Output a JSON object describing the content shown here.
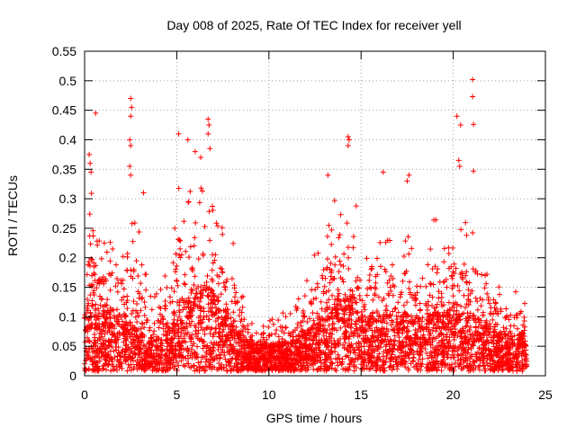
{
  "chart_data": {
    "type": "scatter",
    "title": "Day 008 of 2025, Rate Of TEC Index for receiver yell",
    "xlabel": "GPS time / hours",
    "ylabel": "ROTI / TECUs",
    "xlim": [
      0,
      25
    ],
    "ylim": [
      0,
      0.55
    ],
    "xticks": [
      0,
      5,
      10,
      15,
      20,
      25
    ],
    "xtick_labels": [
      "0",
      "5",
      "10",
      "15",
      "20",
      "25"
    ],
    "yticks": [
      0,
      0.05,
      0.1,
      0.15,
      0.2,
      0.25,
      0.3,
      0.35,
      0.4,
      0.45,
      0.5,
      0.55
    ],
    "ytick_labels": [
      "0",
      "0.05",
      "0.1",
      "0.15",
      "0.2",
      "0.25",
      "0.3",
      "0.35",
      "0.4",
      "0.45",
      "0.5",
      "0.55"
    ],
    "grid": true,
    "marker": "+",
    "color": "#ff0000",
    "data_time_range": [
      0,
      24
    ],
    "envelope": {
      "t": [
        0,
        0.3,
        0.6,
        1,
        1.5,
        2,
        2.5,
        3,
        3.5,
        4,
        4.5,
        5,
        5.5,
        6,
        6.5,
        7,
        7.5,
        8,
        8.5,
        9,
        9.5,
        10,
        10.5,
        11,
        11.5,
        12,
        12.5,
        13,
        13.5,
        14,
        14.5,
        15,
        15.5,
        16,
        16.5,
        17,
        17.5,
        18,
        18.5,
        19,
        19.5,
        20,
        20.5,
        21,
        21.5,
        22,
        22.5,
        23,
        23.5,
        24
      ],
      "max": [
        0.2,
        0.33,
        0.27,
        0.22,
        0.23,
        0.2,
        0.28,
        0.24,
        0.13,
        0.16,
        0.18,
        0.33,
        0.3,
        0.32,
        0.34,
        0.3,
        0.24,
        0.23,
        0.15,
        0.09,
        0.08,
        0.09,
        0.11,
        0.1,
        0.13,
        0.16,
        0.22,
        0.24,
        0.3,
        0.32,
        0.35,
        0.22,
        0.26,
        0.27,
        0.24,
        0.2,
        0.25,
        0.2,
        0.24,
        0.26,
        0.25,
        0.26,
        0.24,
        0.28,
        0.22,
        0.18,
        0.15,
        0.13,
        0.15,
        0.17
      ],
      "typ": [
        0.1,
        0.13,
        0.11,
        0.1,
        0.11,
        0.1,
        0.09,
        0.07,
        0.05,
        0.06,
        0.07,
        0.12,
        0.13,
        0.14,
        0.15,
        0.14,
        0.11,
        0.09,
        0.06,
        0.05,
        0.045,
        0.045,
        0.05,
        0.05,
        0.06,
        0.07,
        0.08,
        0.09,
        0.11,
        0.13,
        0.13,
        0.1,
        0.1,
        0.1,
        0.1,
        0.09,
        0.1,
        0.09,
        0.1,
        0.1,
        0.1,
        0.11,
        0.1,
        0.1,
        0.09,
        0.08,
        0.07,
        0.06,
        0.06,
        0.07
      ]
    },
    "outliers": [
      {
        "x": 0.25,
        "y": 0.375
      },
      {
        "x": 0.3,
        "y": 0.36
      },
      {
        "x": 0.35,
        "y": 0.345
      },
      {
        "x": 0.6,
        "y": 0.445
      },
      {
        "x": 2.5,
        "y": 0.47
      },
      {
        "x": 2.55,
        "y": 0.455
      },
      {
        "x": 2.5,
        "y": 0.44
      },
      {
        "x": 2.45,
        "y": 0.4
      },
      {
        "x": 2.5,
        "y": 0.39
      },
      {
        "x": 2.45,
        "y": 0.355
      },
      {
        "x": 2.5,
        "y": 0.34
      },
      {
        "x": 3.2,
        "y": 0.31
      },
      {
        "x": 5.1,
        "y": 0.41
      },
      {
        "x": 5.6,
        "y": 0.4
      },
      {
        "x": 6.0,
        "y": 0.38
      },
      {
        "x": 6.3,
        "y": 0.37
      },
      {
        "x": 6.7,
        "y": 0.435
      },
      {
        "x": 6.75,
        "y": 0.425
      },
      {
        "x": 6.7,
        "y": 0.41
      },
      {
        "x": 6.8,
        "y": 0.385
      },
      {
        "x": 14.3,
        "y": 0.405
      },
      {
        "x": 14.35,
        "y": 0.4
      },
      {
        "x": 14.3,
        "y": 0.39
      },
      {
        "x": 13.2,
        "y": 0.34
      },
      {
        "x": 16.2,
        "y": 0.345
      },
      {
        "x": 17.6,
        "y": 0.34
      },
      {
        "x": 17.5,
        "y": 0.33
      },
      {
        "x": 20.2,
        "y": 0.44
      },
      {
        "x": 20.4,
        "y": 0.425
      },
      {
        "x": 20.3,
        "y": 0.365
      },
      {
        "x": 20.35,
        "y": 0.355
      },
      {
        "x": 21.05,
        "y": 0.502
      },
      {
        "x": 21.05,
        "y": 0.473
      },
      {
        "x": 21.1,
        "y": 0.426
      },
      {
        "x": 21.1,
        "y": 0.347
      }
    ]
  }
}
